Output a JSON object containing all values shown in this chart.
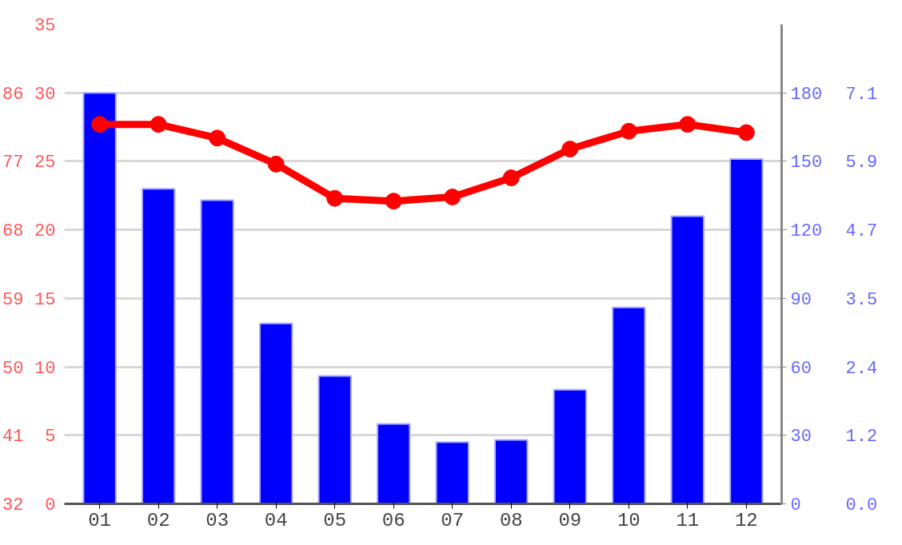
{
  "chart_data": {
    "type": "bar",
    "categories": [
      "01",
      "02",
      "03",
      "04",
      "05",
      "06",
      "07",
      "08",
      "09",
      "10",
      "11",
      "12"
    ],
    "series": [
      {
        "axis": "y2",
        "color": "#0000ff",
        "values": [
          180,
          138,
          133,
          79,
          56,
          35,
          27,
          28,
          50,
          86,
          126,
          151
        ]
      },
      {
        "type": "line",
        "axis": "y",
        "color": "#ff0000",
        "values": [
          27.7,
          27.7,
          26.7,
          24.8,
          22.3,
          22.1,
          22.4,
          23.8,
          25.9,
          27.2,
          27.7,
          27.1
        ]
      }
    ],
    "ylim": [
      0,
      35
    ],
    "yticks": [
      0,
      5,
      10,
      15,
      20,
      25,
      30,
      35
    ],
    "y3lim": [
      32,
      95
    ],
    "y3ticks": [
      32,
      41,
      50,
      59,
      68,
      77,
      86
    ],
    "y2lim": [
      0,
      210
    ],
    "y2ticks": [
      0,
      30,
      60,
      90,
      120,
      150,
      180
    ],
    "annotations": [
      "0.0",
      "1.2",
      "2.4",
      "3.5",
      "4.7",
      "5.9",
      "7.1"
    ],
    "grid": "y",
    "marker": "circle"
  }
}
